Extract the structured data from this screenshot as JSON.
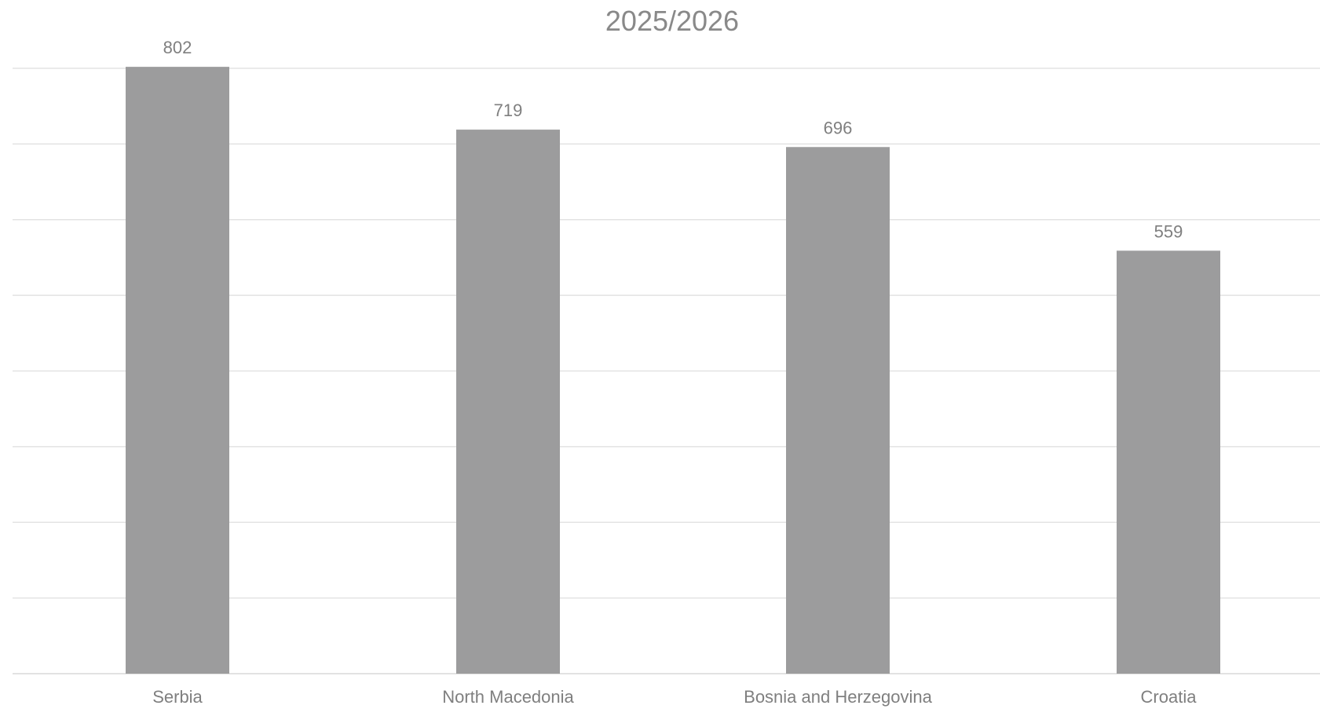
{
  "chart_data": {
    "type": "bar",
    "title": "2025/2026",
    "categories": [
      "Serbia",
      "North Macedonia",
      "Bosnia and Herzegovina",
      "Croatia"
    ],
    "values": [
      802,
      719,
      696,
      559
    ],
    "ylim": [
      0,
      900
    ],
    "grid": true,
    "legend": "none",
    "xlabel": "",
    "ylabel": "",
    "colors": {
      "bar": "#9c9c9d",
      "text": "#7f7f7f",
      "grid": "#e3e3e3"
    }
  }
}
